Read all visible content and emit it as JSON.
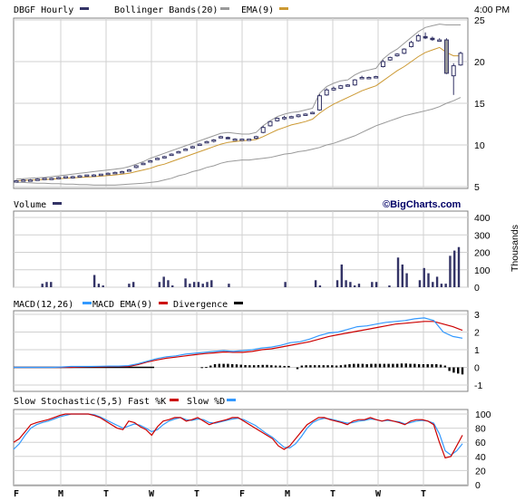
{
  "header": {
    "ticker_label": "DBGF Hourly",
    "bb_label": "Bollinger Bands(20)",
    "ema_label": "EMA(9)",
    "time_label": "4:00 PM"
  },
  "volume_header": {
    "label": "Volume",
    "brand": "©BigCharts.com",
    "units": "Thousands"
  },
  "macd_header": {
    "label1": "MACD(12,26)",
    "label2": "MACD EMA(9)",
    "label3": "Divergence"
  },
  "stoch_header": {
    "label1": "Slow Stochastic(5,5)",
    "label2": "Fast %K",
    "label3": "Slow %D"
  },
  "colors": {
    "candle": "#333366",
    "bb": "#999999",
    "ema": "#cc9933",
    "volume": "#333366",
    "macd": "#3399ff",
    "signal": "#cc0000",
    "divergence": "#000000",
    "fastk": "#cc0000",
    "slowd": "#3399ff",
    "grid": "#d0d0d0",
    "border": "#808080"
  },
  "chart_data": [
    {
      "type": "candlestick",
      "title": "DBGF Hourly",
      "ylim": [
        5,
        25
      ],
      "y_ticks": [
        "5",
        "10",
        "15",
        "20",
        "25"
      ],
      "x_ticks": [
        "F",
        "M",
        "T",
        "W",
        "T",
        "F",
        "M",
        "T",
        "W",
        "T"
      ],
      "ohlc": [
        [
          5.7,
          5.8,
          5.6,
          5.7
        ],
        [
          5.8,
          5.9,
          5.7,
          5.8
        ],
        [
          5.8,
          5.9,
          5.7,
          5.8
        ],
        [
          5.9,
          6.0,
          5.8,
          5.9
        ],
        [
          5.9,
          6.0,
          5.8,
          6.0
        ],
        [
          6.0,
          6.1,
          5.9,
          6.0
        ],
        [
          6.1,
          6.2,
          6.0,
          6.1
        ],
        [
          6.1,
          6.2,
          6.0,
          6.2
        ],
        [
          6.2,
          6.3,
          6.1,
          6.2
        ],
        [
          6.3,
          6.4,
          6.2,
          6.3
        ],
        [
          6.3,
          6.4,
          6.2,
          6.4
        ],
        [
          6.4,
          6.5,
          6.3,
          6.4
        ],
        [
          6.4,
          6.5,
          6.3,
          6.5
        ],
        [
          6.6,
          6.7,
          6.5,
          6.6
        ],
        [
          6.7,
          6.8,
          6.6,
          6.7
        ],
        [
          6.8,
          6.9,
          6.7,
          6.8
        ],
        [
          7.0,
          7.1,
          6.9,
          7.0
        ],
        [
          7.3,
          7.6,
          7.2,
          7.5
        ],
        [
          7.7,
          7.9,
          7.6,
          7.8
        ],
        [
          8.0,
          8.2,
          7.9,
          8.1
        ],
        [
          8.3,
          8.5,
          8.2,
          8.4
        ],
        [
          8.5,
          8.7,
          8.4,
          8.6
        ],
        [
          8.8,
          9.0,
          8.7,
          8.9
        ],
        [
          9.1,
          9.3,
          9.0,
          9.2
        ],
        [
          9.4,
          9.6,
          9.3,
          9.5
        ],
        [
          9.7,
          9.9,
          9.6,
          9.8
        ],
        [
          10.0,
          10.2,
          9.9,
          10.1
        ],
        [
          10.3,
          10.5,
          10.2,
          10.4
        ],
        [
          10.5,
          10.7,
          10.3,
          10.6
        ],
        [
          10.9,
          11.1,
          10.8,
          11.0
        ],
        [
          10.9,
          11.0,
          10.7,
          10.8
        ],
        [
          10.6,
          10.8,
          10.5,
          10.7
        ],
        [
          10.6,
          10.7,
          10.5,
          10.7
        ],
        [
          10.6,
          10.7,
          10.5,
          10.7
        ],
        [
          10.8,
          11.1,
          10.7,
          11.0
        ],
        [
          11.5,
          12.3,
          11.4,
          12.1
        ],
        [
          12.3,
          12.9,
          12.2,
          12.8
        ],
        [
          12.9,
          13.3,
          12.8,
          13.2
        ],
        [
          13.2,
          13.5,
          13.0,
          13.3
        ],
        [
          13.3,
          13.5,
          13.2,
          13.4
        ],
        [
          13.4,
          13.7,
          13.3,
          13.6
        ],
        [
          13.6,
          13.8,
          13.5,
          13.7
        ],
        [
          13.8,
          14.0,
          13.7,
          13.9
        ],
        [
          14.2,
          16.1,
          14.1,
          15.9
        ],
        [
          16.0,
          16.8,
          15.9,
          16.6
        ],
        [
          16.6,
          17.0,
          16.5,
          16.8
        ],
        [
          16.8,
          17.2,
          16.7,
          17.1
        ],
        [
          17.1,
          17.3,
          17.0,
          17.2
        ],
        [
          17.2,
          17.9,
          17.1,
          17.8
        ],
        [
          18.0,
          18.3,
          17.9,
          18.1
        ],
        [
          18.1,
          18.2,
          18.0,
          18.1
        ],
        [
          18.1,
          18.3,
          18.0,
          18.2
        ],
        [
          19.4,
          20.2,
          19.3,
          20.0
        ],
        [
          20.2,
          20.6,
          20.1,
          20.5
        ],
        [
          20.7,
          21.0,
          20.6,
          20.9
        ],
        [
          21.0,
          21.6,
          20.9,
          21.5
        ],
        [
          21.8,
          22.5,
          21.7,
          22.3
        ],
        [
          22.5,
          23.3,
          22.4,
          23.1
        ],
        [
          23.0,
          23.5,
          22.7,
          22.9
        ],
        [
          22.8,
          23.0,
          22.5,
          22.7
        ],
        [
          22.6,
          22.8,
          22.4,
          22.6
        ],
        [
          22.6,
          22.8,
          18.5,
          18.6
        ],
        [
          18.3,
          19.8,
          16.0,
          19.5
        ],
        [
          19.6,
          21.2,
          19.5,
          21.0
        ]
      ],
      "overlays": [
        {
          "name": "Bollinger Bands(20)",
          "upper": [
            5.9,
            5.95,
            6.0,
            6.05,
            6.1,
            6.2,
            6.3,
            6.4,
            6.5,
            6.6,
            6.7,
            6.8,
            6.9,
            7.0,
            7.1,
            7.2,
            7.4,
            7.7,
            8.0,
            8.4,
            8.7,
            9.0,
            9.3,
            9.6,
            9.9,
            10.2,
            10.5,
            10.8,
            11.1,
            11.4,
            11.5,
            11.4,
            11.3,
            11.3,
            11.5,
            12.3,
            12.9,
            13.4,
            13.7,
            13.9,
            14.0,
            14.2,
            14.4,
            16.2,
            17.0,
            17.4,
            17.7,
            17.8,
            18.4,
            18.8,
            19.0,
            19.2,
            20.3,
            21.0,
            21.5,
            22.2,
            22.9,
            23.6,
            24.1,
            24.3,
            24.5,
            24.4,
            24.4,
            24.4
          ],
          "lower": [
            5.5,
            5.5,
            5.45,
            5.4,
            5.4,
            5.35,
            5.35,
            5.3,
            5.3,
            5.25,
            5.25,
            5.2,
            5.2,
            5.2,
            5.2,
            5.25,
            5.3,
            5.35,
            5.4,
            5.5,
            5.6,
            5.8,
            6.0,
            6.3,
            6.5,
            6.8,
            7.0,
            7.3,
            7.5,
            7.8,
            8.0,
            8.1,
            8.2,
            8.2,
            8.3,
            8.4,
            8.5,
            8.7,
            8.9,
            9.0,
            9.2,
            9.3,
            9.5,
            9.7,
            10.0,
            10.2,
            10.5,
            10.8,
            11.1,
            11.5,
            11.9,
            12.3,
            12.6,
            12.9,
            13.2,
            13.5,
            13.7,
            13.9,
            14.1,
            14.3,
            14.6,
            15.0,
            15.3,
            15.7
          ]
        },
        {
          "name": "EMA(9)",
          "values": [
            5.7,
            5.75,
            5.78,
            5.82,
            5.86,
            5.9,
            5.95,
            6.0,
            6.05,
            6.1,
            6.15,
            6.2,
            6.26,
            6.33,
            6.4,
            6.5,
            6.6,
            6.8,
            7.0,
            7.2,
            7.5,
            7.7,
            8.0,
            8.3,
            8.6,
            8.9,
            9.2,
            9.5,
            9.8,
            10.1,
            10.3,
            10.4,
            10.5,
            10.55,
            10.65,
            11.0,
            11.4,
            11.8,
            12.1,
            12.4,
            12.6,
            12.8,
            13.1,
            13.8,
            14.4,
            14.9,
            15.3,
            15.7,
            16.1,
            16.5,
            16.8,
            17.1,
            17.7,
            18.3,
            18.9,
            19.4,
            20.0,
            20.6,
            21.1,
            21.4,
            21.7,
            21.1,
            20.7,
            20.7
          ]
        }
      ]
    },
    {
      "type": "bar",
      "title": "Volume",
      "ylabel": "Thousands",
      "ylim": [
        0,
        400
      ],
      "y_ticks": [
        "0",
        "100",
        "200",
        "300",
        "400"
      ],
      "values": [
        0,
        0,
        0,
        0,
        0,
        0,
        20,
        30,
        30,
        0,
        0,
        0,
        0,
        0,
        0,
        0,
        0,
        0,
        70,
        20,
        10,
        0,
        0,
        0,
        0,
        0,
        20,
        30,
        0,
        0,
        0,
        0,
        0,
        30,
        60,
        40,
        10,
        0,
        0,
        50,
        20,
        30,
        30,
        20,
        30,
        40,
        0,
        0,
        0,
        20,
        0,
        0,
        0,
        0,
        0,
        0,
        0,
        0,
        0,
        0,
        0,
        0,
        30,
        0,
        0,
        0,
        0,
        0,
        0,
        40,
        10,
        0,
        0,
        0,
        40,
        130,
        40,
        30,
        10,
        20,
        0,
        0,
        30,
        30,
        0,
        0,
        10,
        0,
        170,
        130,
        80,
        0,
        0,
        40,
        110,
        80,
        30,
        60,
        20,
        20,
        180,
        210,
        230
      ]
    },
    {
      "type": "line",
      "title": "MACD(12,26)",
      "ylim": [
        -1,
        3
      ],
      "y_ticks": [
        "-1",
        "0",
        "1",
        "2",
        "3"
      ],
      "series": [
        {
          "name": "MACD EMA(9)",
          "values": [
            0,
            0,
            0,
            0,
            0,
            0.02,
            0.05,
            0.05,
            0.05,
            0.06,
            0.07,
            0.07,
            0.1,
            0.2,
            0.35,
            0.5,
            0.6,
            0.65,
            0.75,
            0.8,
            0.85,
            0.9,
            0.95,
            0.9,
            0.95,
            1.0,
            1.1,
            1.15,
            1.25,
            1.4,
            1.45,
            1.6,
            1.8,
            1.95,
            2.0,
            2.15,
            2.3,
            2.35,
            2.45,
            2.55,
            2.6,
            2.65,
            2.75,
            2.8,
            2.65,
            2.0,
            1.75,
            1.65
          ]
        },
        {
          "name": "Divergence",
          "values": [
            0,
            0,
            0,
            0,
            0,
            0,
            0,
            0.02,
            0.03,
            0.03,
            0.04,
            0.05,
            0.05,
            0.15,
            0.3,
            0.42,
            0.52,
            0.58,
            0.65,
            0.72,
            0.78,
            0.82,
            0.87,
            0.85,
            0.85,
            0.9,
            1.0,
            1.05,
            1.15,
            1.25,
            1.35,
            1.45,
            1.6,
            1.75,
            1.85,
            1.95,
            2.05,
            2.15,
            2.25,
            2.35,
            2.45,
            2.5,
            2.55,
            2.6,
            2.6,
            2.45,
            2.3,
            2.1
          ]
        },
        {
          "name": "Divergence Histogram",
          "values": [
            0,
            0,
            0,
            0,
            0,
            0,
            0,
            0,
            0,
            0,
            0,
            0.01,
            0.02,
            0.1,
            0.18,
            0.2,
            0.2,
            0.2,
            0.18,
            0.17,
            0.15,
            0.13,
            0.12,
            0.12,
            0.13,
            0.14,
            0.14,
            0.12,
            0.1,
            0.1,
            0.08,
            0.08,
            0,
            -0.1,
            0.1,
            0.12,
            0.12,
            0.12,
            0.12,
            0.12,
            0.12,
            0.12,
            0.1,
            0.12,
            0.15,
            0.18,
            0.2,
            0.2,
            0.2,
            0.18,
            0.2,
            0.2,
            0.2,
            0.2,
            0.2,
            0.2,
            0.2,
            0.22,
            0.22,
            0.2,
            0.2,
            0.18,
            0.18,
            0.18,
            0.18,
            0.18,
            0.15,
            0.1,
            -0.2,
            -0.3,
            -0.35,
            -0.4
          ]
        }
      ]
    },
    {
      "type": "line",
      "title": "Slow Stochastic(5,5)",
      "ylim": [
        0,
        100
      ],
      "y_ticks": [
        "0",
        "20",
        "40",
        "60",
        "80",
        "100"
      ],
      "series": [
        {
          "name": "Fast %K",
          "values": [
            60,
            65,
            75,
            85,
            88,
            90,
            92,
            95,
            98,
            100,
            100,
            100,
            100,
            100,
            98,
            95,
            90,
            85,
            80,
            78,
            90,
            88,
            82,
            78,
            70,
            82,
            90,
            92,
            95,
            95,
            90,
            92,
            95,
            90,
            85,
            88,
            90,
            92,
            95,
            95,
            90,
            85,
            80,
            75,
            70,
            65,
            55,
            50,
            55,
            65,
            75,
            85,
            90,
            95,
            95,
            92,
            90,
            88,
            85,
            90,
            92,
            92,
            95,
            92,
            90,
            92,
            90,
            88,
            85,
            90,
            92,
            92,
            90,
            85,
            60,
            38,
            40,
            55,
            70
          ]
        },
        {
          "name": "Slow %D",
          "values": [
            50,
            58,
            70,
            80,
            85,
            88,
            90,
            93,
            96,
            98,
            100,
            100,
            100,
            100,
            99,
            96,
            92,
            88,
            84,
            80,
            83,
            86,
            84,
            80,
            75,
            78,
            85,
            90,
            93,
            95,
            92,
            91,
            93,
            92,
            88,
            87,
            89,
            91,
            93,
            94,
            92,
            88,
            84,
            78,
            72,
            67,
            60,
            53,
            52,
            58,
            68,
            80,
            88,
            92,
            94,
            93,
            91,
            89,
            87,
            88,
            90,
            91,
            93,
            92,
            90,
            91,
            90,
            89,
            86,
            88,
            90,
            91,
            90,
            87,
            72,
            48,
            42,
            48,
            58
          ]
        }
      ]
    }
  ]
}
